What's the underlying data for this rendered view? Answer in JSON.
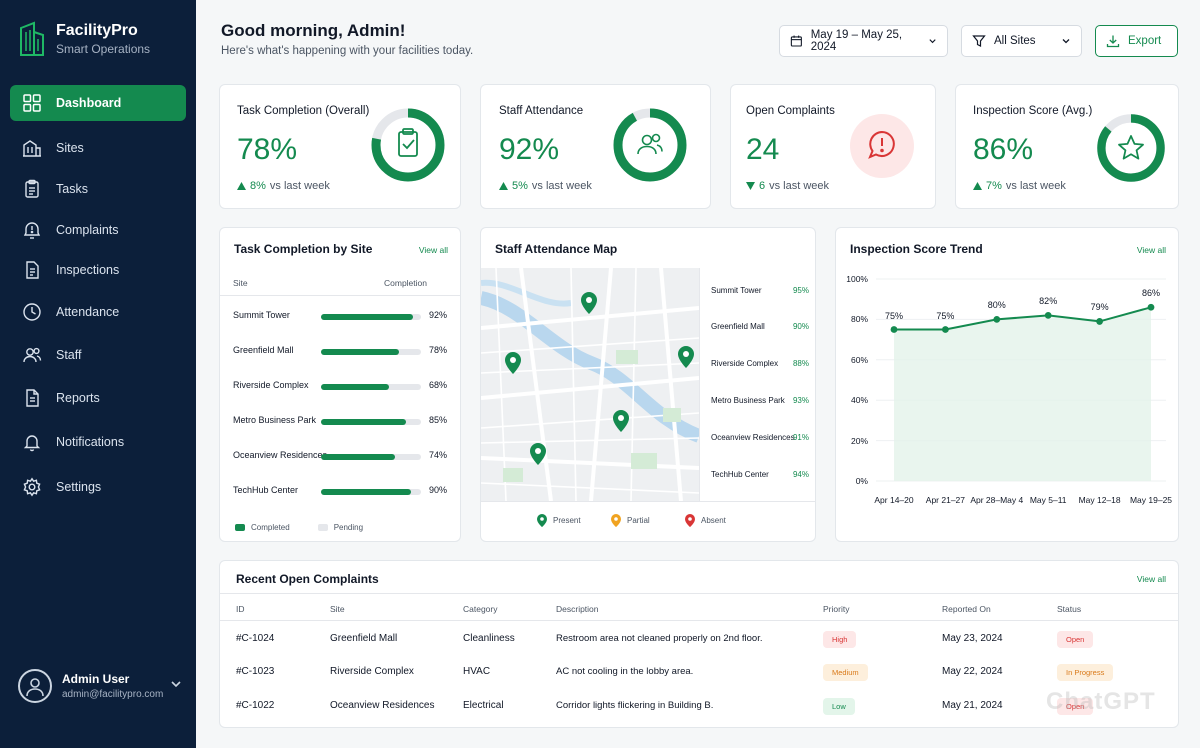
{
  "brand": {
    "name": "FacilityPro",
    "tagline": "Smart Operations"
  },
  "nav": [
    {
      "label": "Dashboard",
      "icon": "grid-icon",
      "active": true
    },
    {
      "label": "Sites",
      "icon": "building-icon"
    },
    {
      "label": "Tasks",
      "icon": "clipboard-icon"
    },
    {
      "label": "Complaints",
      "icon": "alert-icon"
    },
    {
      "label": "Inspections",
      "icon": "document-icon"
    },
    {
      "label": "Attendance",
      "icon": "clock-icon"
    },
    {
      "label": "Staff",
      "icon": "people-icon"
    },
    {
      "label": "Reports",
      "icon": "report-icon"
    },
    {
      "label": "Notifications",
      "icon": "bell-icon"
    },
    {
      "label": "Settings",
      "icon": "gear-icon"
    }
  ],
  "user": {
    "name": "Admin User",
    "email": "admin@facilitypro.com"
  },
  "header": {
    "greeting": "Good morning, Admin!",
    "subtitle": "Here's what's happening with your facilities today.",
    "date_range": "May 19 – May 25, 2024",
    "site_filter": "All Sites",
    "export_label": "Export"
  },
  "kpis": [
    {
      "title": "Task Completion (Overall)",
      "value": "78%",
      "delta": "8%",
      "direction": "up",
      "suffix": "vs last week",
      "icon": "clipboard-check-icon",
      "progress": 78
    },
    {
      "title": "Staff Attendance",
      "value": "92%",
      "delta": "5%",
      "direction": "up",
      "suffix": "vs last week",
      "icon": "people-icon",
      "progress": 92
    },
    {
      "title": "Open Complaints",
      "value": "24",
      "delta": "6",
      "direction": "down",
      "suffix": "vs last week",
      "icon": "alert-icon"
    },
    {
      "title": "Inspection Score (Avg.)",
      "value": "86%",
      "delta": "7%",
      "direction": "up",
      "suffix": "vs last week",
      "icon": "star-icon",
      "progress": 86
    }
  ],
  "task_by_site": {
    "title": "Task Completion by Site",
    "view_all": "View all",
    "col_site": "Site",
    "col_completion": "Completion",
    "rows": [
      {
        "site": "Summit Tower",
        "pct": 92,
        "label": "92%"
      },
      {
        "site": "Greenfield Mall",
        "pct": 78,
        "label": "78%"
      },
      {
        "site": "Riverside Complex",
        "pct": 68,
        "label": "68%"
      },
      {
        "site": "Metro Business Park",
        "pct": 85,
        "label": "85%"
      },
      {
        "site": "Oceanview Residences",
        "pct": 74,
        "label": "74%"
      },
      {
        "site": "TechHub Center",
        "pct": 90,
        "label": "90%"
      }
    ],
    "legend_completed": "Completed",
    "legend_pending": "Pending",
    "colors": {
      "completed": "#148a4f",
      "pending": "#e5e7eb"
    }
  },
  "attendance_map": {
    "title": "Staff Attendance Map",
    "sites": [
      {
        "name": "Summit Tower",
        "pct": "95%"
      },
      {
        "name": "Greenfield Mall",
        "pct": "90%"
      },
      {
        "name": "Riverside Complex",
        "pct": "88%"
      },
      {
        "name": "Metro Business Park",
        "pct": "93%"
      },
      {
        "name": "Oceanview Residences",
        "pct": "91%"
      },
      {
        "name": "TechHub Center",
        "pct": "94%"
      }
    ],
    "legend": [
      {
        "label": "Present",
        "color": "#148a4f"
      },
      {
        "label": "Partial",
        "color": "#f0a321"
      },
      {
        "label": "Absent",
        "color": "#d93636"
      }
    ]
  },
  "inspection_trend": {
    "title": "Inspection Score Trend",
    "view_all": "View all",
    "chart_data": {
      "type": "area",
      "categories": [
        "Apr 14–20",
        "Apr 21–27",
        "Apr 28–May 4",
        "May 5–11",
        "May 12–18",
        "May 19–25"
      ],
      "values": [
        75,
        75,
        80,
        82,
        79,
        86
      ],
      "value_labels": [
        "75%",
        "75%",
        "80%",
        "82%",
        "79%",
        "86%"
      ],
      "y_ticks": [
        "0%",
        "20%",
        "40%",
        "60%",
        "80%",
        "100%"
      ],
      "ylim": [
        0,
        100
      ],
      "color": "#148a4f"
    }
  },
  "complaints": {
    "title": "Recent Open Complaints",
    "view_all": "View all",
    "columns": [
      "ID",
      "Site",
      "Category",
      "Description",
      "Priority",
      "Reported On",
      "Status"
    ],
    "rows": [
      {
        "id": "#C-1024",
        "site": "Greenfield Mall",
        "category": "Cleanliness",
        "description": "Restroom area not cleaned properly on 2nd floor.",
        "priority": "High",
        "reported": "May 23, 2024",
        "status": "Open"
      },
      {
        "id": "#C-1023",
        "site": "Riverside Complex",
        "category": "HVAC",
        "description": "AC not cooling in the lobby area.",
        "priority": "Medium",
        "reported": "May 22, 2024",
        "status": "In Progress"
      },
      {
        "id": "#C-1022",
        "site": "Oceanview Residences",
        "category": "Electrical",
        "description": "Corridor lights flickering in Building B.",
        "priority": "Low",
        "reported": "May 21, 2024",
        "status": "Open"
      }
    ]
  },
  "watermark": "ChatGPT"
}
